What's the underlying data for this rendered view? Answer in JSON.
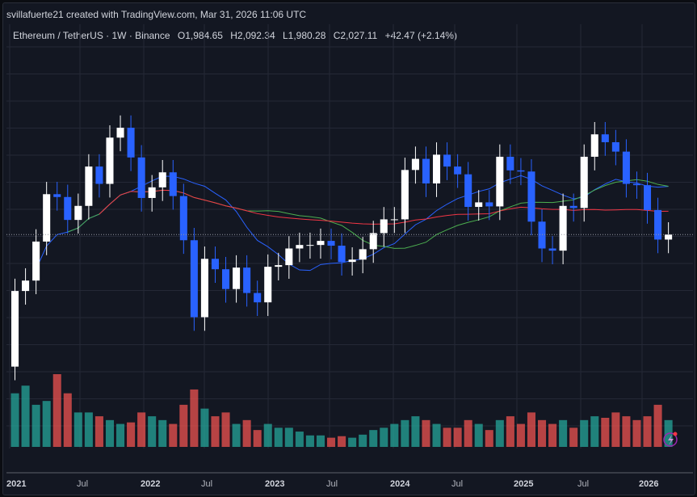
{
  "header": {
    "credit": "svillafuerte21 created with TradingView.com, Mar 31, 2026 11:06 UTC",
    "symbol": "Ethereum / TetherUS · 1W · Binance",
    "open": "O1,984.65",
    "high": "H2,092.34",
    "low": "L1,980.28",
    "close": "C2,027.11",
    "change": "+42.47 (+2.14%)"
  },
  "chart_data": {
    "type": "candlestick",
    "interval": "1W",
    "scale": "log",
    "grid": true,
    "x_ticks": [
      "2021",
      "Jul",
      "2022",
      "Jul",
      "2023",
      "Jul",
      "2024",
      "Jul",
      "2025",
      "Jul",
      "2026"
    ],
    "start_open": 730,
    "months": [
      "2021-01",
      "2021-02",
      "2021-03",
      "2021-04",
      "2021-05",
      "2021-06",
      "2021-07",
      "2021-08",
      "2021-09",
      "2021-10",
      "2021-11",
      "2021-12",
      "2022-01",
      "2022-02",
      "2022-03",
      "2022-04",
      "2022-05",
      "2022-06",
      "2022-07",
      "2022-08",
      "2022-09",
      "2022-10",
      "2022-11",
      "2022-12",
      "2023-01",
      "2023-02",
      "2023-03",
      "2023-04",
      "2023-05",
      "2023-06",
      "2023-07",
      "2023-08",
      "2023-09",
      "2023-10",
      "2023-11",
      "2023-12",
      "2024-01",
      "2024-02",
      "2024-03",
      "2024-04",
      "2024-05",
      "2024-06",
      "2024-07",
      "2024-08",
      "2024-09",
      "2024-10",
      "2024-11",
      "2024-12",
      "2025-01",
      "2025-02",
      "2025-03",
      "2025-04",
      "2025-05",
      "2025-06",
      "2025-07",
      "2025-08",
      "2025-09",
      "2025-10",
      "2025-11",
      "2025-12",
      "2026-01",
      "2026-02",
      "2026-03"
    ],
    "close": [
      1310,
      1420,
      1920,
      2770,
      2710,
      2270,
      2530,
      3430,
      3000,
      4290,
      4630,
      3680,
      2690,
      2920,
      3280,
      2730,
      1940,
      1070,
      1680,
      1550,
      1330,
      1570,
      1290,
      1200,
      1580,
      1600,
      1820,
      1870,
      1870,
      1930,
      1860,
      1640,
      1670,
      1810,
      2050,
      2280,
      2280,
      3340,
      3640,
      3010,
      3760,
      3430,
      3230,
      2510,
      2600,
      2520,
      3700,
      3330,
      3300,
      2240,
      1820,
      1790,
      2530,
      2490,
      3700,
      4400,
      4140,
      3850,
      3000,
      2970,
      2450,
      1950,
      2027
    ],
    "volume": [
      70,
      80,
      55,
      60,
      95,
      70,
      45,
      45,
      40,
      35,
      30,
      32,
      45,
      40,
      35,
      30,
      55,
      75,
      50,
      40,
      45,
      30,
      35,
      22,
      30,
      25,
      25,
      20,
      15,
      15,
      12,
      14,
      12,
      16,
      22,
      25,
      30,
      35,
      40,
      35,
      30,
      25,
      25,
      35,
      30,
      22,
      35,
      40,
      30,
      45,
      35,
      30,
      35,
      25,
      35,
      40,
      38,
      45,
      40,
      35,
      40,
      55,
      35
    ],
    "moving_averages": [
      {
        "color": "#2962ff"
      },
      {
        "color": "#4caf50"
      },
      {
        "color": "#f23645"
      }
    ],
    "current_price": 2027.11
  },
  "colors": {
    "up": "#ffffff",
    "down": "#2962ff",
    "vol_up": "#26a69a",
    "vol_down": "#ef5350",
    "background": "#131722"
  }
}
